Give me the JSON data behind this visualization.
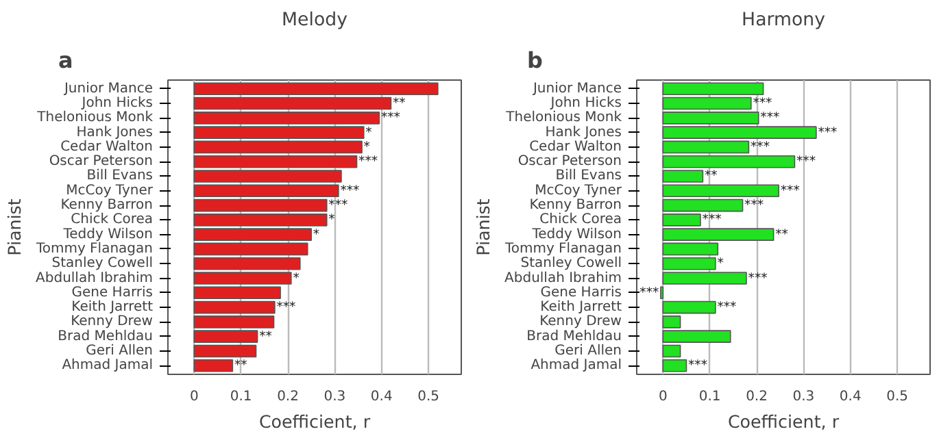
{
  "chart_data": [
    {
      "type": "bar",
      "orientation": "horizontal",
      "title": "Melody",
      "xlabel": "Coefficient, r",
      "ylabel": "Pianist",
      "annotations": [
        "a"
      ],
      "categories": [
        "Junior Mance",
        "John Hicks",
        "Thelonious Monk",
        "Hank Jones",
        "Cedar Walton",
        "Oscar Peterson",
        "Bill Evans",
        "McCoy Tyner",
        "Kenny Barron",
        "Chick Corea",
        "Teddy Wilson",
        "Tommy Flanagan",
        "Stanley Cowell",
        "Abdullah Ibrahim",
        "Gene Harris",
        "Keith Jarrett",
        "Kenny Drew",
        "Brad Mehldau",
        "Geri Allen",
        "Ahmad Jamal"
      ],
      "series": [
        {
          "color": "#e02020",
          "values": [
            0.52,
            0.42,
            0.395,
            0.362,
            0.358,
            0.347,
            0.314,
            0.308,
            0.283,
            0.283,
            0.25,
            0.242,
            0.226,
            0.207,
            0.184,
            0.172,
            0.17,
            0.135,
            0.132,
            0.082
          ],
          "value_labels": [
            null,
            "**",
            "***",
            "*",
            "*",
            "***",
            null,
            "***",
            "***",
            "*",
            "*",
            null,
            null,
            "*",
            null,
            "***",
            null,
            "**",
            null,
            "**"
          ]
        }
      ],
      "xlim": [
        -0.056,
        0.57
      ],
      "xticks": [
        0,
        0.1,
        0.2,
        0.3,
        0.4,
        0.5
      ],
      "grid": "x"
    },
    {
      "type": "bar",
      "orientation": "horizontal",
      "title": "Harmony",
      "xlabel": "Coefficient, r",
      "ylabel": "Pianist",
      "annotations": [
        "b"
      ],
      "categories": [
        "Junior Mance",
        "John Hicks",
        "Thelonious Monk",
        "Hank Jones",
        "Cedar Walton",
        "Oscar Peterson",
        "Bill Evans",
        "McCoy Tyner",
        "Kenny Barron",
        "Chick Corea",
        "Teddy Wilson",
        "Tommy Flanagan",
        "Stanley Cowell",
        "Abdullah Ibrahim",
        "Gene Harris",
        "Keith Jarrett",
        "Kenny Drew",
        "Brad Mehldau",
        "Geri Allen",
        "Ahmad Jamal"
      ],
      "series": [
        {
          "color": "#22e022",
          "values": [
            0.214,
            0.188,
            0.204,
            0.327,
            0.183,
            0.281,
            0.085,
            0.247,
            0.17,
            0.08,
            0.236,
            0.117,
            0.112,
            0.178,
            -0.005,
            0.112,
            0.037,
            0.144,
            0.037,
            0.05
          ],
          "value_labels": [
            null,
            "***",
            "***",
            "***",
            "***",
            "***",
            "**",
            "***",
            "***",
            "***",
            "**",
            null,
            "*",
            "***",
            "***",
            "***",
            null,
            null,
            null,
            "***"
          ]
        }
      ],
      "xlim": [
        -0.056,
        0.57
      ],
      "xticks": [
        0,
        0.1,
        0.2,
        0.3,
        0.4,
        0.5
      ],
      "grid": "x"
    }
  ]
}
